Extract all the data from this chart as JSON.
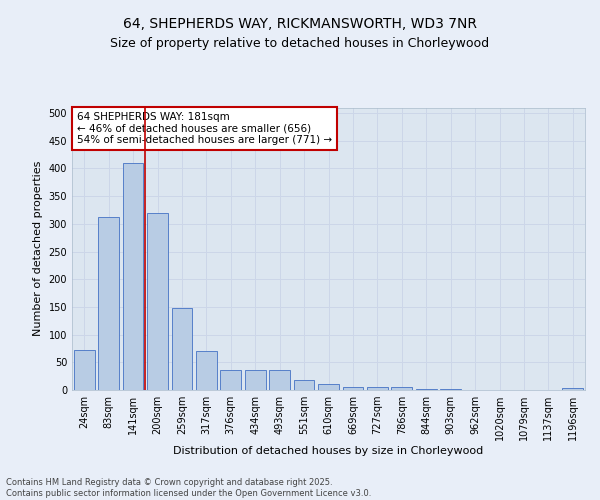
{
  "title_line1": "64, SHEPHERDS WAY, RICKMANSWORTH, WD3 7NR",
  "title_line2": "Size of property relative to detached houses in Chorleywood",
  "xlabel": "Distribution of detached houses by size in Chorleywood",
  "ylabel": "Number of detached properties",
  "categories": [
    "24sqm",
    "83sqm",
    "141sqm",
    "200sqm",
    "259sqm",
    "317sqm",
    "376sqm",
    "434sqm",
    "493sqm",
    "551sqm",
    "610sqm",
    "669sqm",
    "727sqm",
    "786sqm",
    "844sqm",
    "903sqm",
    "962sqm",
    "1020sqm",
    "1079sqm",
    "1137sqm",
    "1196sqm"
  ],
  "values": [
    72,
    312,
    410,
    320,
    148,
    70,
    37,
    37,
    36,
    18,
    11,
    5,
    6,
    6,
    2,
    2,
    0,
    0,
    0,
    0,
    3
  ],
  "bar_color": "#b8cce4",
  "bar_edge_color": "#4472c4",
  "vline_color": "#c00000",
  "vline_x_index": 2,
  "annotation_text": "64 SHEPHERDS WAY: 181sqm\n← 46% of detached houses are smaller (656)\n54% of semi-detached houses are larger (771) →",
  "annotation_box_color": "#c00000",
  "annotation_text_color": "#000000",
  "annotation_bg_color": "#ffffff",
  "ylim": [
    0,
    510
  ],
  "yticks": [
    0,
    50,
    100,
    150,
    200,
    250,
    300,
    350,
    400,
    450,
    500
  ],
  "grid_color": "#ccd6e8",
  "bg_color": "#e8eef8",
  "plot_bg_color": "#dce6f0",
  "footer_text": "Contains HM Land Registry data © Crown copyright and database right 2025.\nContains public sector information licensed under the Open Government Licence v3.0.",
  "title_fontsize": 10,
  "subtitle_fontsize": 9,
  "tick_fontsize": 7,
  "label_fontsize": 8,
  "annotation_fontsize": 7.5,
  "footer_fontsize": 6,
  "figsize": [
    6.0,
    5.0
  ],
  "dpi": 100
}
